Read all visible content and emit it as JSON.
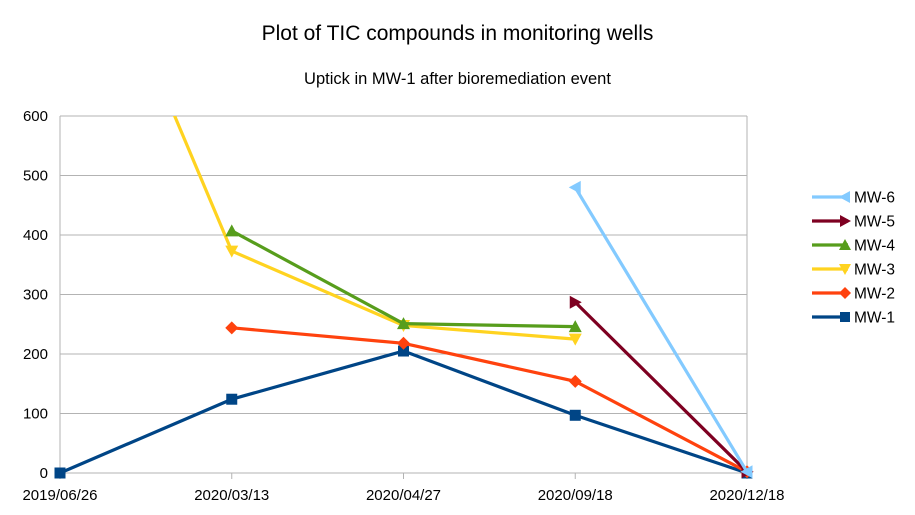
{
  "chart_data": {
    "type": "line",
    "title": "Plot of TIC compounds in monitoring wells",
    "subtitle": "Uptick in MW-1 after bioremediation event",
    "xlabel": "",
    "ylabel": "",
    "categories": [
      "2019/06/26",
      "2020/03/13",
      "2020/04/27",
      "2020/09/18",
      "2020/12/18"
    ],
    "ylim": [
      0,
      600
    ],
    "yticks": [
      0,
      100,
      200,
      300,
      400,
      500,
      600
    ],
    "grid": true,
    "legend_position": "right",
    "series": [
      {
        "name": "MW-6",
        "color": "#83caff",
        "marker": "triangle-left",
        "values": [
          null,
          null,
          null,
          480,
          2
        ]
      },
      {
        "name": "MW-5",
        "color": "#7e0021",
        "marker": "triangle-right",
        "values": [
          null,
          null,
          null,
          287,
          2
        ]
      },
      {
        "name": "MW-4",
        "color": "#579d1c",
        "marker": "triangle-up",
        "values": [
          null,
          407,
          251,
          246,
          null
        ]
      },
      {
        "name": "MW-3",
        "color": "#ffd320",
        "marker": "triangle-down",
        "values": [
          null,
          373,
          248,
          225,
          null
        ]
      },
      {
        "name": "MW-2",
        "color": "#ff420e",
        "marker": "diamond",
        "values": [
          null,
          244,
          218,
          154,
          2
        ]
      },
      {
        "name": "MW-1",
        "color": "#004586",
        "marker": "square",
        "values": [
          0,
          124,
          205,
          97,
          0
        ]
      }
    ],
    "offscale_segments": [
      {
        "series": "MW-3",
        "note": "line enters from above the plot top between 2019/06/26 and 2020/03/13",
        "from_category_index": 0,
        "to_category_index": 1,
        "to_value": 373
      }
    ]
  }
}
